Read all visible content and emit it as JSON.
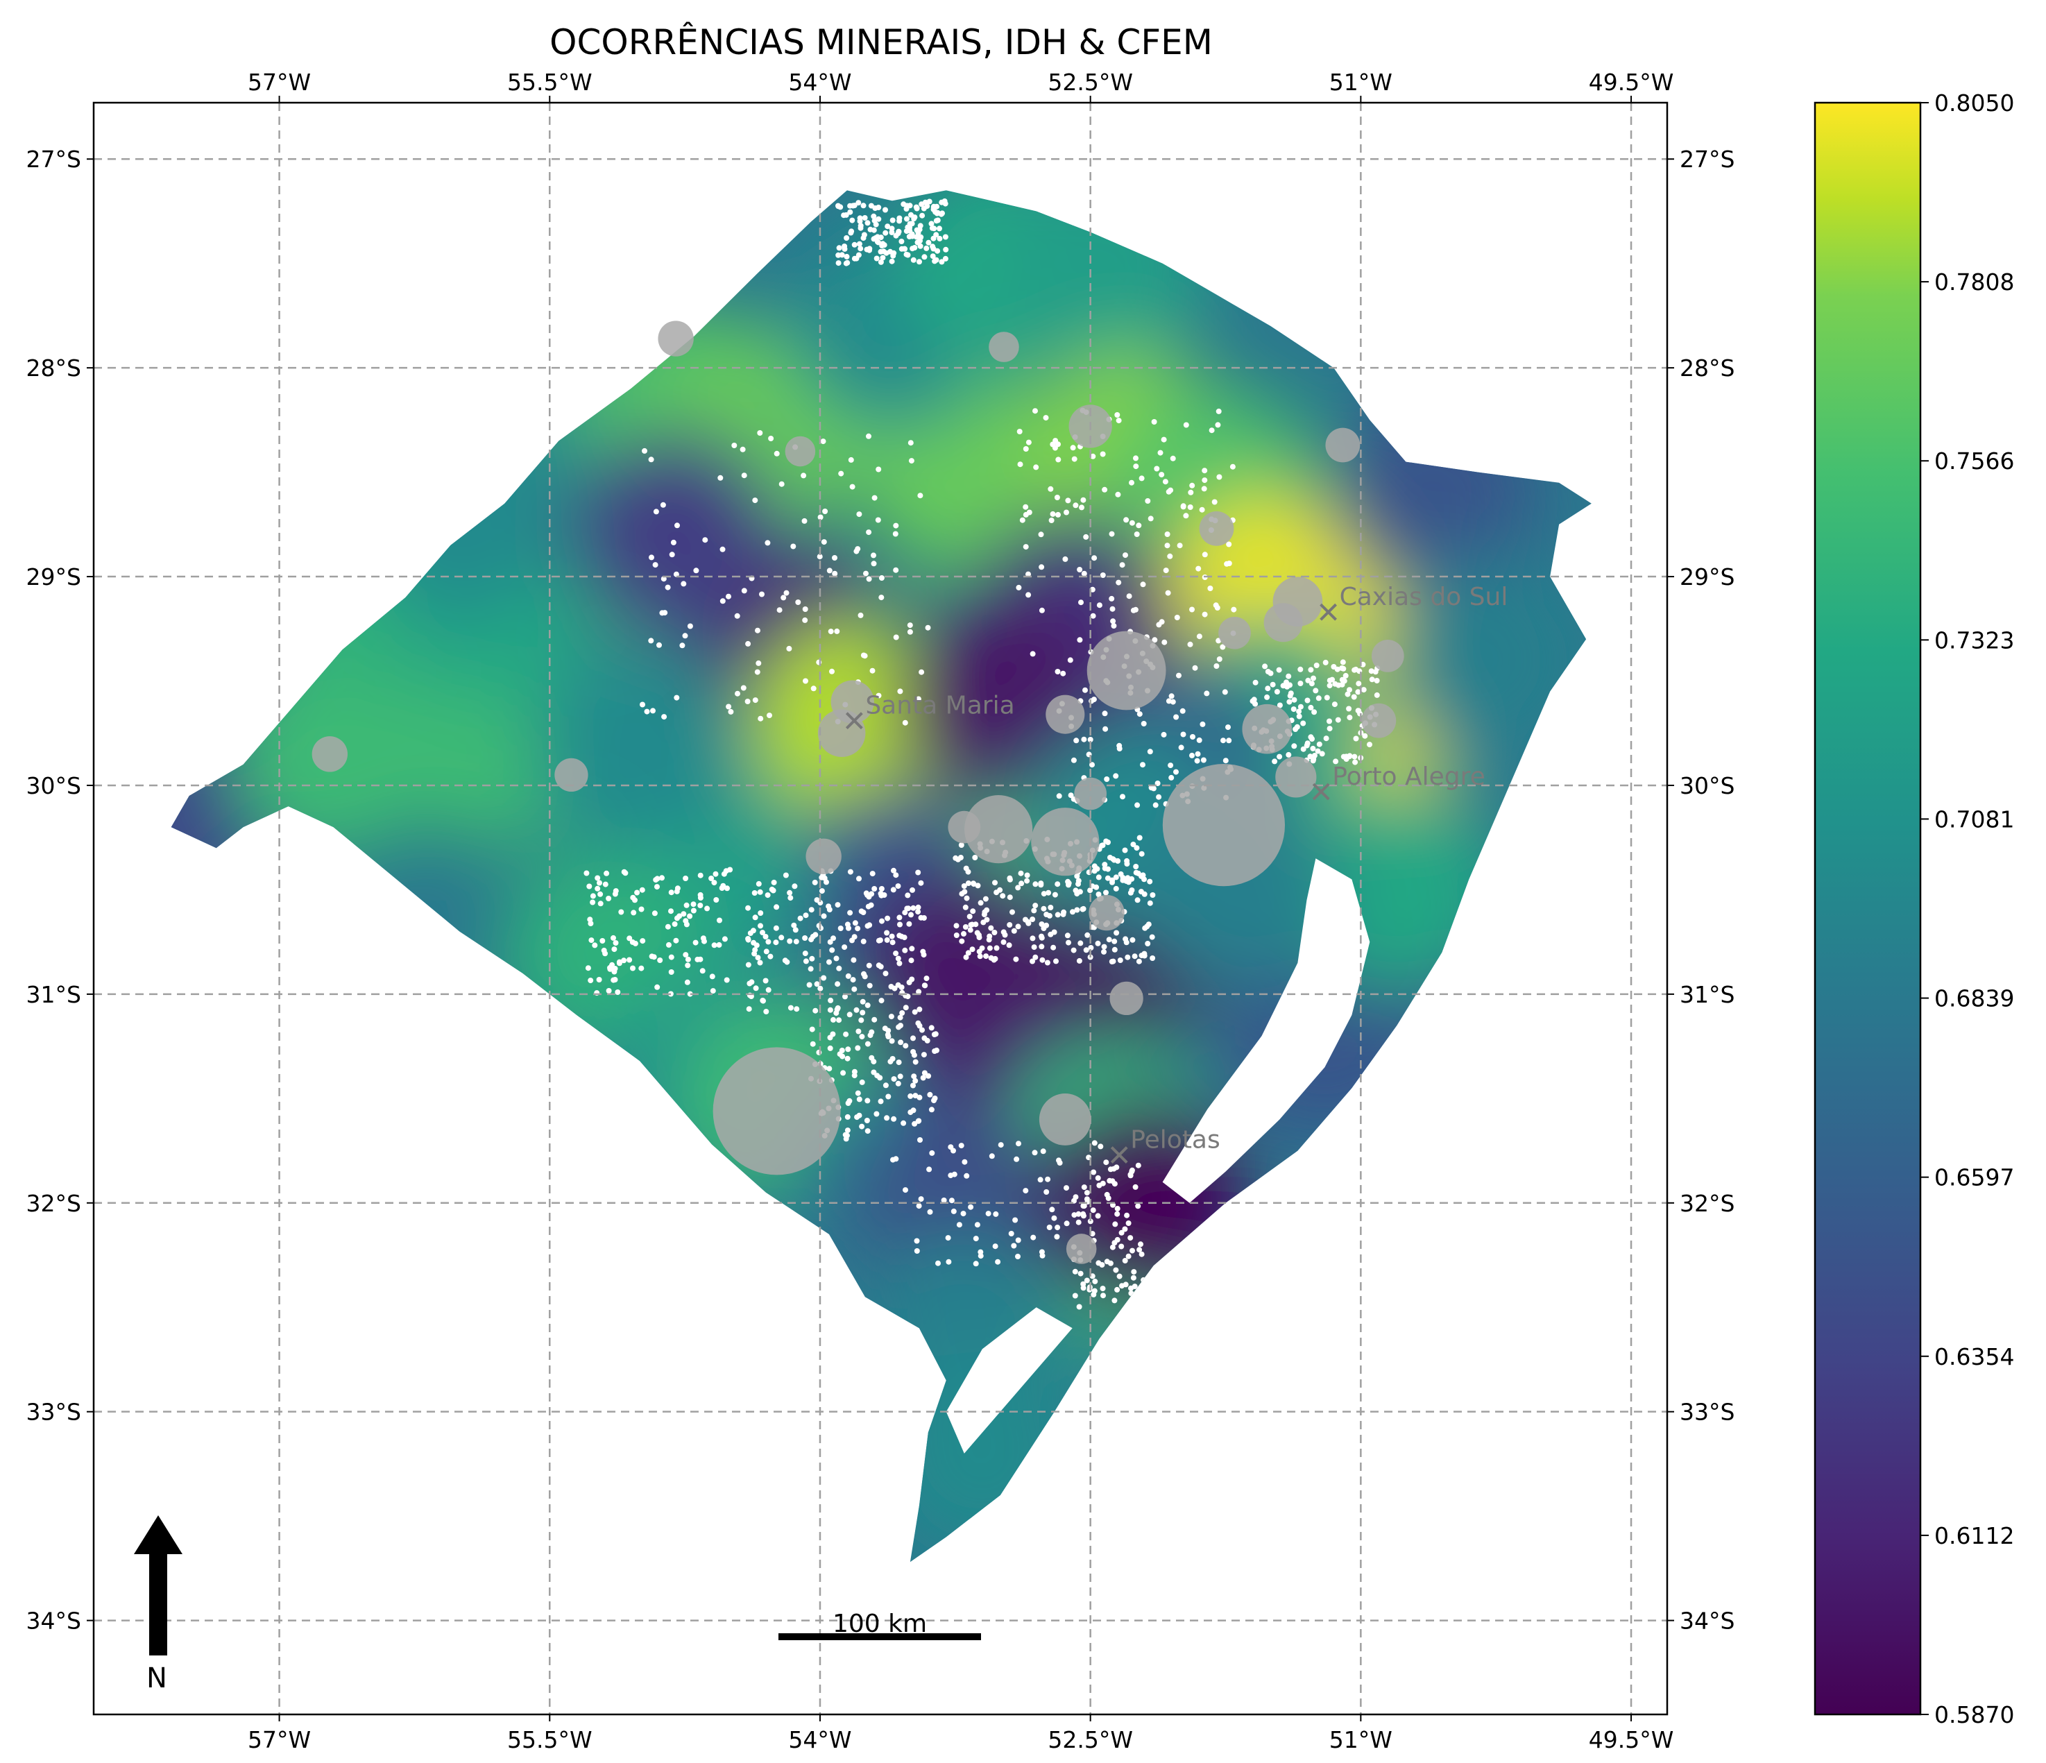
{
  "title": "OCORRÊNCIAS MINERAIS, IDH & CFEM",
  "axes": {
    "lon_ticks": [
      {
        "value": -57.0,
        "label": "57°W"
      },
      {
        "value": -55.5,
        "label": "55.5°W"
      },
      {
        "value": -54.0,
        "label": "54°W"
      },
      {
        "value": -52.5,
        "label": "52.5°W"
      },
      {
        "value": -51.0,
        "label": "51°W"
      },
      {
        "value": -49.5,
        "label": "49.5°W"
      }
    ],
    "lat_ticks": [
      {
        "value": -27,
        "label": "27°S"
      },
      {
        "value": -28,
        "label": "28°S"
      },
      {
        "value": -29,
        "label": "29°S"
      },
      {
        "value": -30,
        "label": "30°S"
      },
      {
        "value": -31,
        "label": "31°S"
      },
      {
        "value": -32,
        "label": "32°S"
      },
      {
        "value": -33,
        "label": "33°S"
      },
      {
        "value": -34,
        "label": "34°S"
      }
    ],
    "lon_range": [
      -58.03,
      -49.3
    ],
    "lat_range": [
      -34.45,
      -26.73
    ],
    "grid": true
  },
  "colorbar": {
    "colormap": "viridis",
    "min": 0.587,
    "max": 0.805,
    "tick_labels": [
      "0.5870",
      "0.6112",
      "0.6354",
      "0.6597",
      "0.6839",
      "0.7081",
      "0.7323",
      "0.7566",
      "0.7808",
      "0.8050"
    ]
  },
  "cities": [
    {
      "name": "Santa Maria",
      "lon": -53.81,
      "lat": -29.69
    },
    {
      "name": "Caxias do Sul",
      "lon": -51.18,
      "lat": -29.17
    },
    {
      "name": "Porto Alegre",
      "lon": -51.22,
      "lat": -30.03
    },
    {
      "name": "Pelotas",
      "lon": -52.34,
      "lat": -31.77
    }
  ],
  "cfem_bubbles": [
    {
      "lon": -54.24,
      "lat": -31.56,
      "size": 1.0
    },
    {
      "lon": -51.76,
      "lat": -30.19,
      "size": 0.95
    },
    {
      "lon": -52.3,
      "lat": -29.45,
      "size": 0.55
    },
    {
      "lon": -53.01,
      "lat": -30.21,
      "size": 0.45
    },
    {
      "lon": -52.64,
      "lat": -30.27,
      "size": 0.45
    },
    {
      "lon": -52.64,
      "lat": -31.6,
      "size": 0.3
    },
    {
      "lon": -51.52,
      "lat": -29.73,
      "size": 0.28
    },
    {
      "lon": -51.35,
      "lat": -29.12,
      "size": 0.28
    },
    {
      "lon": -53.88,
      "lat": -29.75,
      "size": 0.26
    },
    {
      "lon": -53.82,
      "lat": -29.6,
      "size": 0.22
    },
    {
      "lon": -52.64,
      "lat": -29.66,
      "size": 0.18
    },
    {
      "lon": -52.5,
      "lat": -28.28,
      "size": 0.22
    },
    {
      "lon": -51.36,
      "lat": -29.96,
      "size": 0.2
    },
    {
      "lon": -51.43,
      "lat": -29.22,
      "size": 0.18
    },
    {
      "lon": -56.72,
      "lat": -29.85,
      "size": 0.15
    },
    {
      "lon": -55.38,
      "lat": -29.95,
      "size": 0.13
    },
    {
      "lon": -54.8,
      "lat": -27.86,
      "size": 0.15
    },
    {
      "lon": -53.98,
      "lat": -30.34,
      "size": 0.15
    },
    {
      "lon": -52.41,
      "lat": -30.61,
      "size": 0.15
    },
    {
      "lon": -52.3,
      "lat": -31.02,
      "size": 0.13
    },
    {
      "lon": -52.5,
      "lat": -30.04,
      "size": 0.12
    },
    {
      "lon": -53.2,
      "lat": -30.2,
      "size": 0.12
    },
    {
      "lon": -51.1,
      "lat": -28.37,
      "size": 0.14
    },
    {
      "lon": -51.8,
      "lat": -28.77,
      "size": 0.14
    },
    {
      "lon": -50.9,
      "lat": -29.69,
      "size": 0.14
    },
    {
      "lon": -50.85,
      "lat": -29.38,
      "size": 0.12
    },
    {
      "lon": -51.7,
      "lat": -29.27,
      "size": 0.12
    },
    {
      "lon": -52.55,
      "lat": -32.22,
      "size": 0.1
    },
    {
      "lon": -54.11,
      "lat": -28.4,
      "size": 0.1
    },
    {
      "lon": -52.98,
      "lat": -27.9,
      "size": 0.1
    }
  ],
  "idh_samples": [
    {
      "lon": -57.6,
      "lat": -30.15,
      "idh": 0.64
    },
    {
      "lon": -56.7,
      "lat": -29.85,
      "idh": 0.75
    },
    {
      "lon": -55.8,
      "lat": -29.8,
      "idh": 0.75
    },
    {
      "lon": -56.6,
      "lat": -29.0,
      "idh": 0.74
    },
    {
      "lon": -55.8,
      "lat": -29.1,
      "idh": 0.73
    },
    {
      "lon": -56.0,
      "lat": -28.7,
      "idh": 0.7
    },
    {
      "lon": -55.5,
      "lat": -28.4,
      "idh": 0.7
    },
    {
      "lon": -54.8,
      "lat": -28.2,
      "idh": 0.76
    },
    {
      "lon": -54.3,
      "lat": -28.3,
      "idh": 0.77
    },
    {
      "lon": -54.6,
      "lat": -29.2,
      "idh": 0.77
    },
    {
      "lon": -54.2,
      "lat": -29.3,
      "idh": 0.61
    },
    {
      "lon": -53.8,
      "lat": -29.7,
      "idh": 0.79
    },
    {
      "lon": -53.2,
      "lat": -28.5,
      "idh": 0.77
    },
    {
      "lon": -53.6,
      "lat": -27.8,
      "idh": 0.7
    },
    {
      "lon": -53.0,
      "lat": -27.5,
      "idh": 0.73
    },
    {
      "lon": -52.4,
      "lat": -27.5,
      "idh": 0.72
    },
    {
      "lon": -52.3,
      "lat": -28.4,
      "idh": 0.78
    },
    {
      "lon": -51.8,
      "lat": -28.6,
      "idh": 0.76
    },
    {
      "lon": -51.5,
      "lat": -29.1,
      "idh": 0.8
    },
    {
      "lon": -51.0,
      "lat": -29.3,
      "idh": 0.8
    },
    {
      "lon": -50.6,
      "lat": -28.6,
      "idh": 0.65
    },
    {
      "lon": -50.3,
      "lat": -29.4,
      "idh": 0.69
    },
    {
      "lon": -51.1,
      "lat": -30.1,
      "idh": 0.8
    },
    {
      "lon": -51.5,
      "lat": -29.7,
      "idh": 0.73
    },
    {
      "lon": -52.0,
      "lat": -29.9,
      "idh": 0.66
    },
    {
      "lon": -52.6,
      "lat": -29.2,
      "idh": 0.62
    },
    {
      "lon": -52.8,
      "lat": -30.3,
      "idh": 0.76
    },
    {
      "lon": -53.6,
      "lat": -30.5,
      "idh": 0.65
    },
    {
      "lon": -54.6,
      "lat": -30.4,
      "idh": 0.72
    },
    {
      "lon": -55.2,
      "lat": -30.8,
      "idh": 0.74
    },
    {
      "lon": -54.6,
      "lat": -31.4,
      "idh": 0.71
    },
    {
      "lon": -54.2,
      "lat": -31.5,
      "idh": 0.75
    },
    {
      "lon": -53.6,
      "lat": -31.9,
      "idh": 0.68
    },
    {
      "lon": -53.0,
      "lat": -31.2,
      "idh": 0.63
    },
    {
      "lon": -53.2,
      "lat": -30.9,
      "idh": 0.6
    },
    {
      "lon": -52.2,
      "lat": -30.7,
      "idh": 0.59
    },
    {
      "lon": -52.6,
      "lat": -31.6,
      "idh": 0.61
    },
    {
      "lon": -52.4,
      "lat": -31.7,
      "idh": 0.74
    },
    {
      "lon": -52.4,
      "lat": -32.2,
      "idh": 0.75
    },
    {
      "lon": -53.2,
      "lat": -32.1,
      "idh": 0.64
    },
    {
      "lon": -53.2,
      "lat": -32.6,
      "idh": 0.69
    },
    {
      "lon": -53.1,
      "lat": -33.2,
      "idh": 0.7
    },
    {
      "lon": -52.2,
      "lat": -32.0,
      "idh": 0.59
    },
    {
      "lon": -51.2,
      "lat": -31.2,
      "idh": 0.65
    },
    {
      "lon": -50.8,
      "lat": -30.9,
      "idh": 0.65
    },
    {
      "lon": -50.8,
      "lat": -30.5,
      "idh": 0.73
    },
    {
      "lon": -53.0,
      "lat": -29.6,
      "idh": 0.6
    },
    {
      "lon": -52.3,
      "lat": -30.2,
      "idh": 0.7
    },
    {
      "lon": -51.7,
      "lat": -30.5,
      "idh": 0.69
    },
    {
      "lon": -55.0,
      "lat": -29.8,
      "idh": 0.7
    },
    {
      "lon": -54.8,
      "lat": -28.8,
      "idh": 0.63
    }
  ],
  "scale_bar": {
    "label": "100 km"
  },
  "north_arrow": {
    "label": "N"
  }
}
